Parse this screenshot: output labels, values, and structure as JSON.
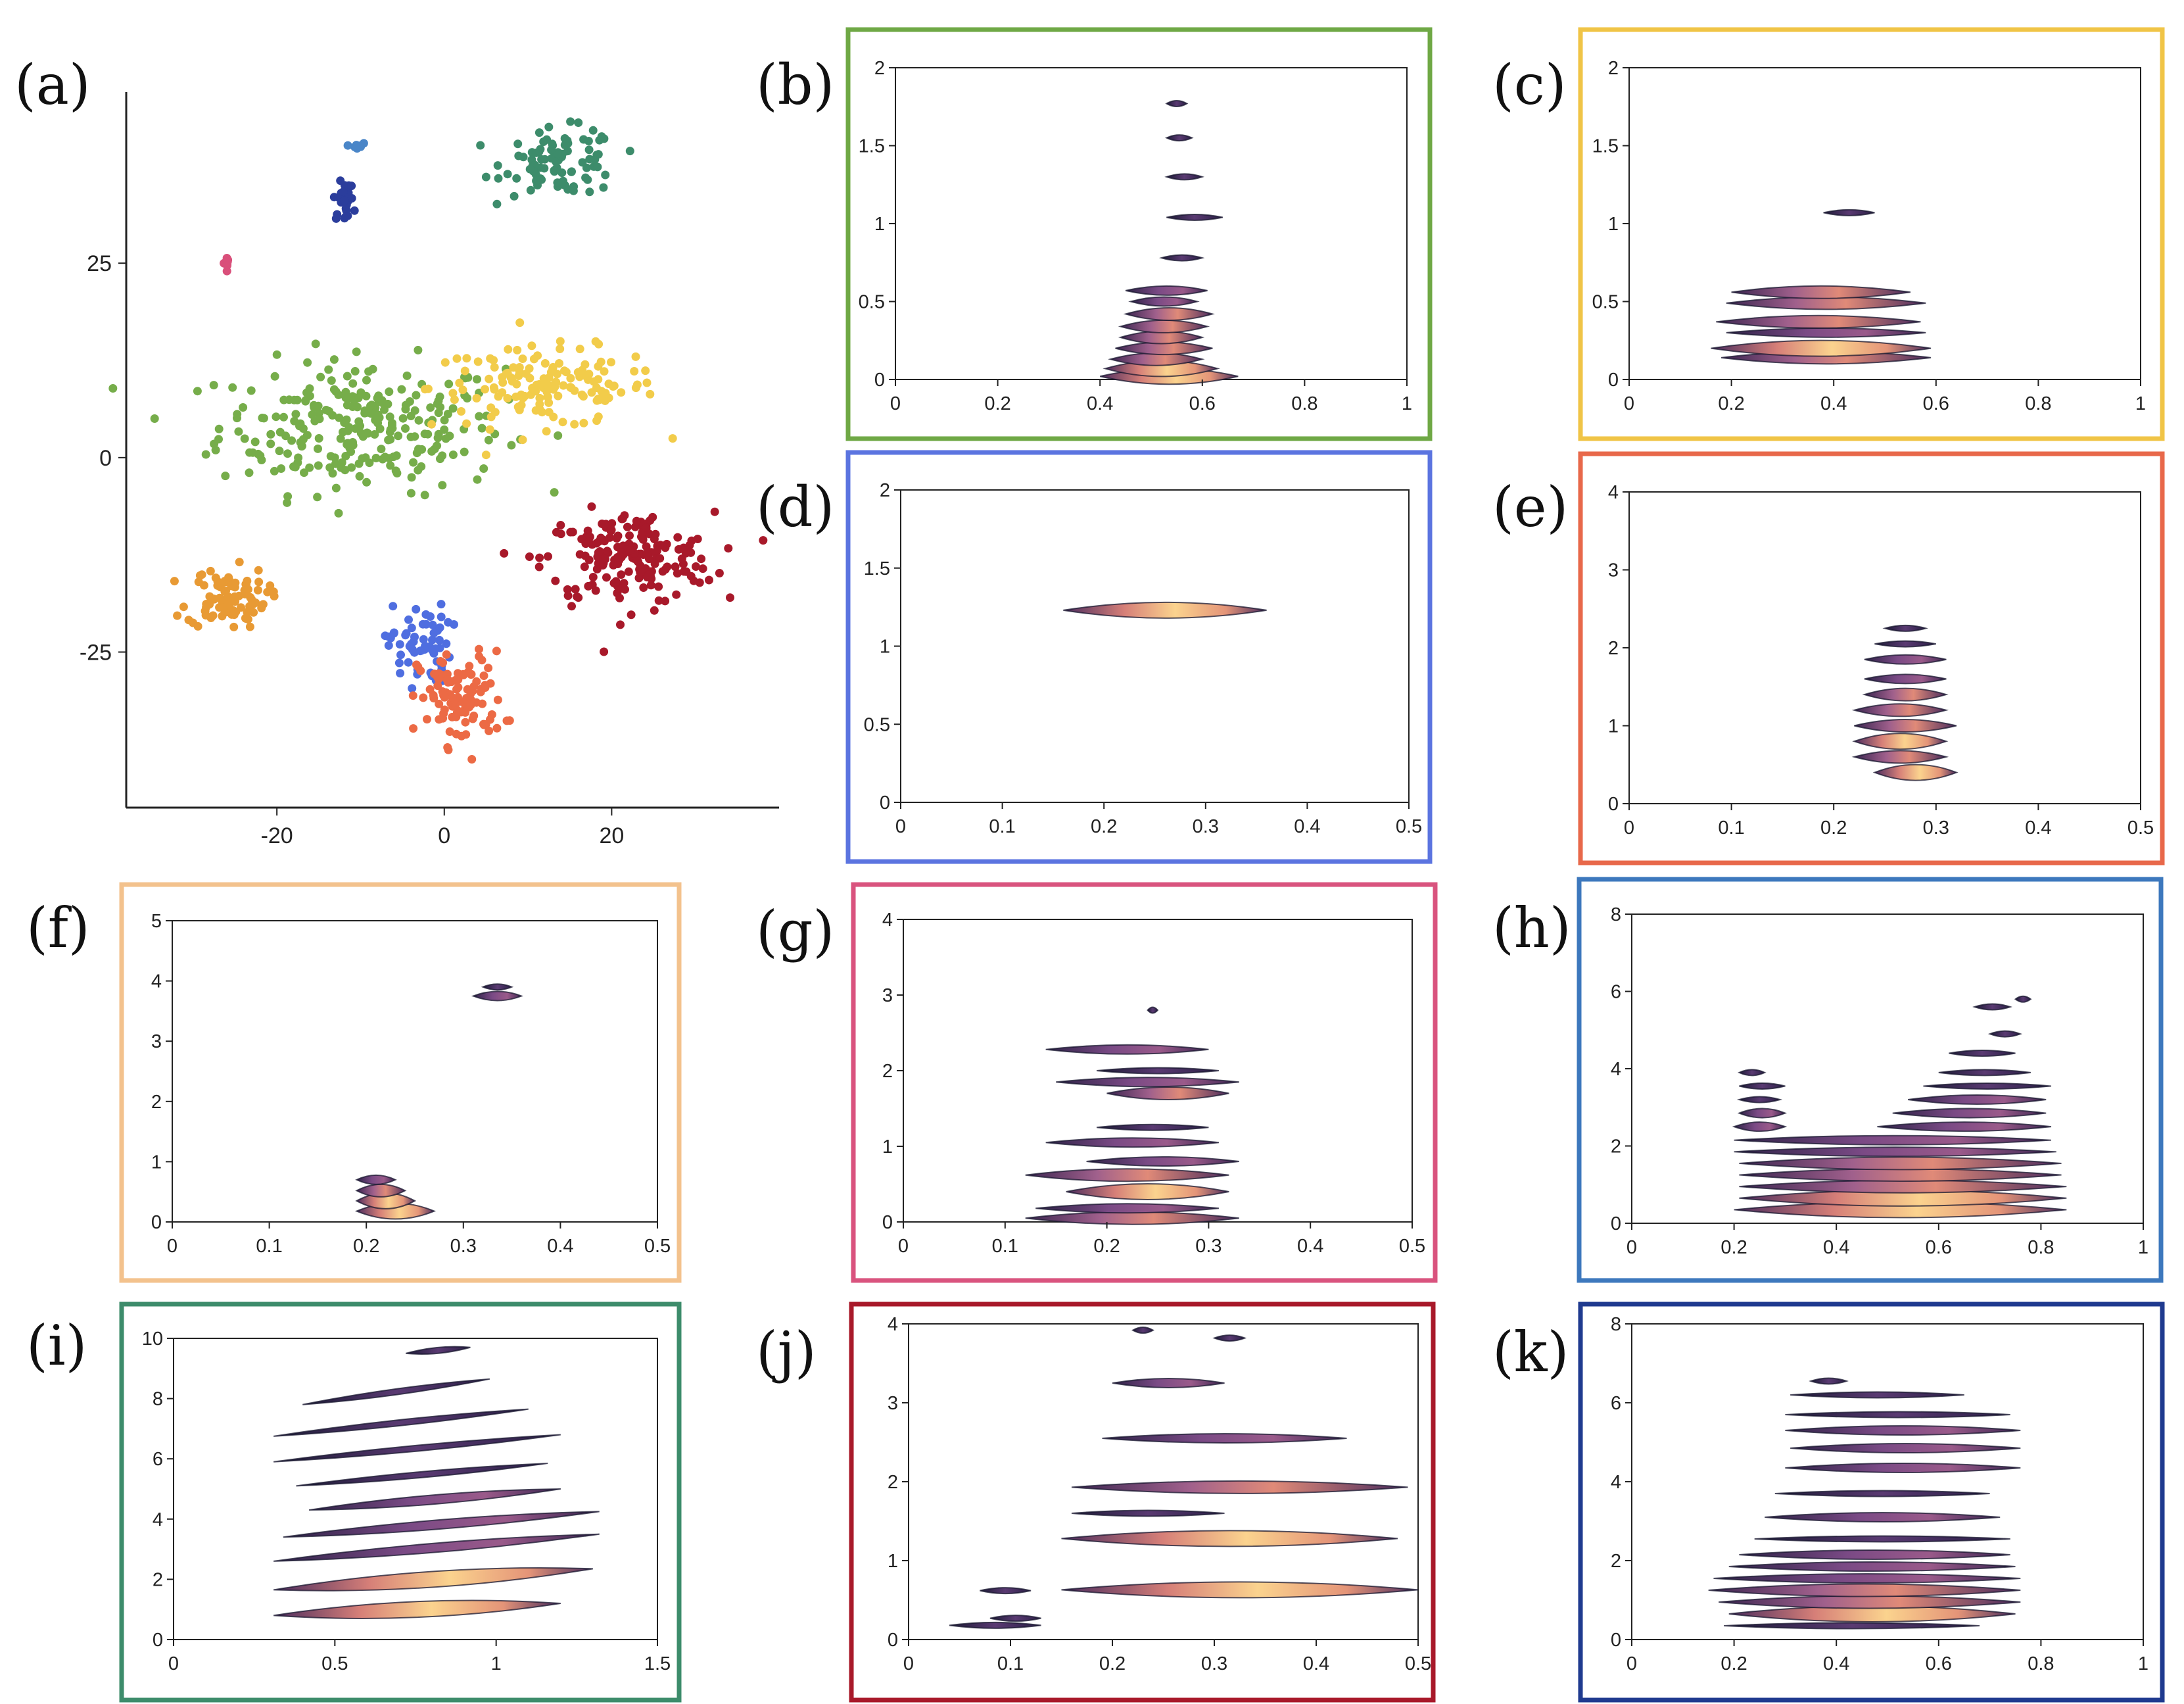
{
  "figure": {
    "panel_labels": [
      "(a)",
      "(b)",
      "(c)",
      "(d)",
      "(e)",
      "(f)",
      "(g)",
      "(h)",
      "(i)",
      "(j)",
      "(k)"
    ]
  },
  "chart_data": [
    {
      "id": "a",
      "type": "scatter",
      "label": "(a)",
      "xticks": [
        "-20",
        "0",
        "20"
      ],
      "yticks": [
        "25",
        "0",
        "-25"
      ],
      "xlim": [
        -38,
        40
      ],
      "ylim": [
        -45,
        47
      ],
      "clusters": [
        {
          "color": "#76ad4a",
          "cx": -10,
          "cy": 4,
          "sx": 10,
          "sy": 5,
          "n": 260
        },
        {
          "color": "#f2cc4a",
          "cx": 12,
          "cy": 9,
          "sx": 8,
          "sy": 3,
          "n": 150
        },
        {
          "color": "#3d8c6b",
          "cx": 14,
          "cy": 38,
          "sx": 4,
          "sy": 2.5,
          "n": 90
        },
        {
          "color": "#a8192a",
          "cx": 22,
          "cy": -13,
          "sx": 6,
          "sy": 3.5,
          "n": 190
        },
        {
          "color": "#e89a34",
          "cx": -26,
          "cy": -18,
          "sx": 2.8,
          "sy": 2.3,
          "n": 90
        },
        {
          "color": "#4f6ee0",
          "cx": -3,
          "cy": -24,
          "sx": 2.2,
          "sy": 3,
          "n": 60
        },
        {
          "color": "#ec6a45",
          "cx": 2,
          "cy": -31,
          "sx": 3,
          "sy": 3.5,
          "n": 110
        },
        {
          "color": "#2b3d9c",
          "cx": -12,
          "cy": 33,
          "sx": 0.7,
          "sy": 1.4,
          "n": 25
        },
        {
          "color": "#4a86c8",
          "cx": -10.5,
          "cy": 40,
          "sx": 0.4,
          "sy": 0.4,
          "n": 8
        },
        {
          "color": "#d94f7a",
          "cx": -26,
          "cy": 25,
          "sx": 0.3,
          "sy": 0.5,
          "n": 8
        }
      ]
    },
    {
      "id": "b",
      "type": "heatmap",
      "label": "(b)",
      "frame_color": "#6fa845",
      "xticks": [
        "0",
        "0.2",
        "0.4",
        "0.6",
        "0.8",
        "1"
      ],
      "yticks": [
        "0",
        "0.5",
        "1",
        "1.5",
        "2"
      ],
      "xlim": [
        0,
        1
      ],
      "ylim": [
        0,
        2
      ],
      "bands": [
        [
          0.4,
          0.67,
          0.02,
          3
        ],
        [
          0.41,
          0.63,
          0.07,
          3
        ],
        [
          0.42,
          0.6,
          0.13,
          2
        ],
        [
          0.43,
          0.62,
          0.2,
          2
        ],
        [
          0.44,
          0.6,
          0.27,
          2
        ],
        [
          0.44,
          0.61,
          0.34,
          2
        ],
        [
          0.45,
          0.62,
          0.42,
          2
        ],
        [
          0.46,
          0.59,
          0.5,
          1
        ],
        [
          0.45,
          0.61,
          0.57,
          1
        ],
        [
          0.52,
          0.6,
          0.78,
          0
        ],
        [
          0.53,
          0.64,
          1.04,
          0
        ],
        [
          0.53,
          0.6,
          1.3,
          0
        ],
        [
          0.53,
          0.58,
          1.55,
          0
        ],
        [
          0.53,
          0.57,
          1.77,
          0
        ]
      ]
    },
    {
      "id": "c",
      "type": "heatmap",
      "label": "(c)",
      "frame_color": "#f0c446",
      "xticks": [
        "0",
        "0.2",
        "0.4",
        "0.6",
        "0.8",
        "1"
      ],
      "yticks": [
        "0",
        "0.5",
        "1",
        "1.5",
        "2"
      ],
      "xlim": [
        0,
        1
      ],
      "ylim": [
        0,
        2
      ],
      "bands": [
        [
          0.18,
          0.59,
          0.14,
          2
        ],
        [
          0.16,
          0.59,
          0.2,
          3
        ],
        [
          0.19,
          0.58,
          0.3,
          1
        ],
        [
          0.17,
          0.57,
          0.37,
          2
        ],
        [
          0.19,
          0.58,
          0.49,
          2
        ],
        [
          0.2,
          0.55,
          0.56,
          2
        ],
        [
          0.38,
          0.48,
          1.07,
          0
        ]
      ]
    },
    {
      "id": "d",
      "type": "heatmap",
      "label": "(d)",
      "frame_color": "#5b74e0",
      "xticks": [
        "0",
        "0.1",
        "0.2",
        "0.3",
        "0.4",
        "0.5"
      ],
      "yticks": [
        "0",
        "0.5",
        "1",
        "1.5",
        "2"
      ],
      "xlim": [
        0,
        0.5
      ],
      "ylim": [
        0,
        2
      ],
      "bands": [
        [
          0.16,
          0.36,
          1.23,
          3
        ]
      ]
    },
    {
      "id": "e",
      "type": "heatmap",
      "label": "(e)",
      "frame_color": "#e8684a",
      "xticks": [
        "0",
        "0.1",
        "0.2",
        "0.3",
        "0.4",
        "0.5"
      ],
      "yticks": [
        "0",
        "1",
        "2",
        "3",
        "4"
      ],
      "xlim": [
        0,
        0.5
      ],
      "ylim": [
        0,
        4
      ],
      "bands": [
        [
          0.24,
          0.32,
          0.4,
          3
        ],
        [
          0.22,
          0.31,
          0.6,
          2
        ],
        [
          0.22,
          0.31,
          0.8,
          3
        ],
        [
          0.22,
          0.32,
          1.0,
          2
        ],
        [
          0.22,
          0.31,
          1.2,
          2
        ],
        [
          0.23,
          0.31,
          1.4,
          2
        ],
        [
          0.23,
          0.31,
          1.6,
          1
        ],
        [
          0.23,
          0.31,
          1.85,
          1
        ],
        [
          0.24,
          0.3,
          2.05,
          0
        ],
        [
          0.25,
          0.29,
          2.25,
          0
        ]
      ]
    },
    {
      "id": "f",
      "type": "heatmap",
      "label": "(f)",
      "frame_color": "#f3c28d",
      "xticks": [
        "0",
        "0.1",
        "0.2",
        "0.3",
        "0.4",
        "0.5"
      ],
      "yticks": [
        "0",
        "1",
        "2",
        "3",
        "4",
        "5"
      ],
      "xlim": [
        0,
        0.5
      ],
      "ylim": [
        0,
        5
      ],
      "bands": [
        [
          0.19,
          0.27,
          0.18,
          3
        ],
        [
          0.19,
          0.25,
          0.35,
          3
        ],
        [
          0.19,
          0.24,
          0.52,
          2
        ],
        [
          0.19,
          0.23,
          0.7,
          1
        ],
        [
          0.31,
          0.36,
          3.75,
          1
        ],
        [
          0.32,
          0.35,
          3.9,
          0
        ]
      ]
    },
    {
      "id": "g",
      "type": "heatmap",
      "label": "(g)",
      "frame_color": "#d9537e",
      "xticks": [
        "0",
        "0.1",
        "0.2",
        "0.3",
        "0.4",
        "0.5"
      ],
      "yticks": [
        "0",
        "1",
        "2",
        "3",
        "4"
      ],
      "xlim": [
        0,
        0.5
      ],
      "ylim": [
        0,
        4
      ],
      "bands": [
        [
          0.12,
          0.33,
          0.05,
          2
        ],
        [
          0.13,
          0.31,
          0.18,
          1
        ],
        [
          0.16,
          0.32,
          0.4,
          3
        ],
        [
          0.12,
          0.32,
          0.62,
          2
        ],
        [
          0.18,
          0.33,
          0.8,
          1
        ],
        [
          0.14,
          0.31,
          1.05,
          1
        ],
        [
          0.19,
          0.3,
          1.25,
          0
        ],
        [
          0.2,
          0.32,
          1.7,
          2
        ],
        [
          0.15,
          0.33,
          1.85,
          1
        ],
        [
          0.19,
          0.31,
          2.0,
          0
        ],
        [
          0.14,
          0.3,
          2.28,
          1
        ],
        [
          0.24,
          0.25,
          2.8,
          0
        ]
      ]
    },
    {
      "id": "h",
      "type": "heatmap",
      "label": "(h)",
      "frame_color": "#3d78bd",
      "xticks": [
        "0",
        "0.2",
        "0.4",
        "0.6",
        "0.8",
        "1"
      ],
      "yticks": [
        "0",
        "2",
        "4",
        "6",
        "8"
      ],
      "xlim": [
        0,
        1
      ],
      "ylim": [
        0,
        8
      ],
      "bands": [
        [
          0.2,
          0.85,
          0.35,
          3
        ],
        [
          0.21,
          0.85,
          0.65,
          3
        ],
        [
          0.21,
          0.85,
          0.95,
          2
        ],
        [
          0.21,
          0.84,
          1.25,
          2
        ],
        [
          0.21,
          0.84,
          1.55,
          2
        ],
        [
          0.2,
          0.83,
          1.85,
          1
        ],
        [
          0.2,
          0.82,
          2.15,
          1
        ],
        [
          0.2,
          0.3,
          2.5,
          1
        ],
        [
          0.48,
          0.82,
          2.5,
          1
        ],
        [
          0.21,
          0.3,
          2.85,
          1
        ],
        [
          0.51,
          0.81,
          2.85,
          1
        ],
        [
          0.21,
          0.29,
          3.2,
          0
        ],
        [
          0.54,
          0.81,
          3.2,
          1
        ],
        [
          0.21,
          0.3,
          3.55,
          0
        ],
        [
          0.57,
          0.82,
          3.55,
          0
        ],
        [
          0.21,
          0.26,
          3.9,
          0
        ],
        [
          0.6,
          0.78,
          3.9,
          0
        ],
        [
          0.62,
          0.75,
          4.4,
          0
        ],
        [
          0.7,
          0.76,
          4.9,
          0
        ],
        [
          0.67,
          0.74,
          5.6,
          0
        ],
        [
          0.75,
          0.78,
          5.8,
          0
        ]
      ]
    },
    {
      "id": "i",
      "type": "heatmap",
      "label": "(i)",
      "frame_color": "#3d8c6b",
      "xticks": [
        "0",
        "0.5",
        "1",
        "1.5"
      ],
      "yticks": [
        "0",
        "2",
        "4",
        "6",
        "8",
        "10"
      ],
      "xlim": [
        0,
        1.5
      ],
      "ylim": [
        0,
        10
      ],
      "bands": [
        [
          0.31,
          1.2,
          0.8,
          3,
          0.4
        ],
        [
          0.31,
          1.3,
          1.65,
          3,
          0.7
        ],
        [
          0.31,
          1.32,
          2.6,
          1,
          0.9
        ],
        [
          0.34,
          1.32,
          3.4,
          1,
          0.85
        ],
        [
          0.42,
          1.2,
          4.3,
          1,
          0.7
        ],
        [
          0.38,
          1.16,
          5.1,
          0,
          0.75
        ],
        [
          0.31,
          1.2,
          5.9,
          0,
          0.9
        ],
        [
          0.31,
          1.1,
          6.75,
          0,
          0.9
        ],
        [
          0.4,
          0.98,
          7.8,
          0,
          0.85
        ],
        [
          0.72,
          0.92,
          9.5,
          0,
          0.2
        ]
      ]
    },
    {
      "id": "j",
      "type": "heatmap",
      "label": "(j)",
      "frame_color": "#a8192a",
      "xticks": [
        "0",
        "0.1",
        "0.2",
        "0.3",
        "0.4",
        "0.5"
      ],
      "yticks": [
        "0",
        "1",
        "2",
        "3",
        "4"
      ],
      "xlim": [
        0,
        0.5
      ],
      "ylim": [
        0,
        4
      ],
      "bands": [
        [
          0.04,
          0.13,
          0.18,
          0
        ],
        [
          0.08,
          0.13,
          0.27,
          0
        ],
        [
          0.07,
          0.12,
          0.62,
          0
        ],
        [
          0.15,
          0.5,
          0.63,
          3
        ],
        [
          0.15,
          0.48,
          1.28,
          3
        ],
        [
          0.16,
          0.31,
          1.6,
          0
        ],
        [
          0.16,
          0.49,
          1.93,
          2
        ],
        [
          0.19,
          0.43,
          2.55,
          1
        ],
        [
          0.2,
          0.31,
          3.25,
          1
        ],
        [
          0.22,
          0.24,
          3.92,
          0
        ],
        [
          0.3,
          0.33,
          3.82,
          0
        ]
      ]
    },
    {
      "id": "k",
      "type": "heatmap",
      "label": "(k)",
      "frame_color": "#1f3a8f",
      "xticks": [
        "0",
        "0.2",
        "0.4",
        "0.6",
        "0.8",
        "1"
      ],
      "yticks": [
        "0",
        "2",
        "4",
        "6",
        "8"
      ],
      "xlim": [
        0,
        1
      ],
      "ylim": [
        0,
        8
      ],
      "bands": [
        [
          0.18,
          0.68,
          0.35,
          0
        ],
        [
          0.19,
          0.75,
          0.65,
          3
        ],
        [
          0.17,
          0.76,
          0.95,
          2
        ],
        [
          0.15,
          0.76,
          1.25,
          2
        ],
        [
          0.16,
          0.76,
          1.55,
          1
        ],
        [
          0.19,
          0.75,
          1.85,
          1
        ],
        [
          0.21,
          0.74,
          2.15,
          1
        ],
        [
          0.24,
          0.74,
          2.55,
          0
        ],
        [
          0.26,
          0.72,
          3.1,
          1
        ],
        [
          0.28,
          0.7,
          3.7,
          0
        ],
        [
          0.3,
          0.76,
          4.35,
          1
        ],
        [
          0.31,
          0.76,
          4.85,
          1
        ],
        [
          0.3,
          0.76,
          5.3,
          1
        ],
        [
          0.3,
          0.74,
          5.7,
          0
        ],
        [
          0.31,
          0.65,
          6.2,
          0
        ],
        [
          0.35,
          0.42,
          6.55,
          0
        ]
      ]
    }
  ]
}
